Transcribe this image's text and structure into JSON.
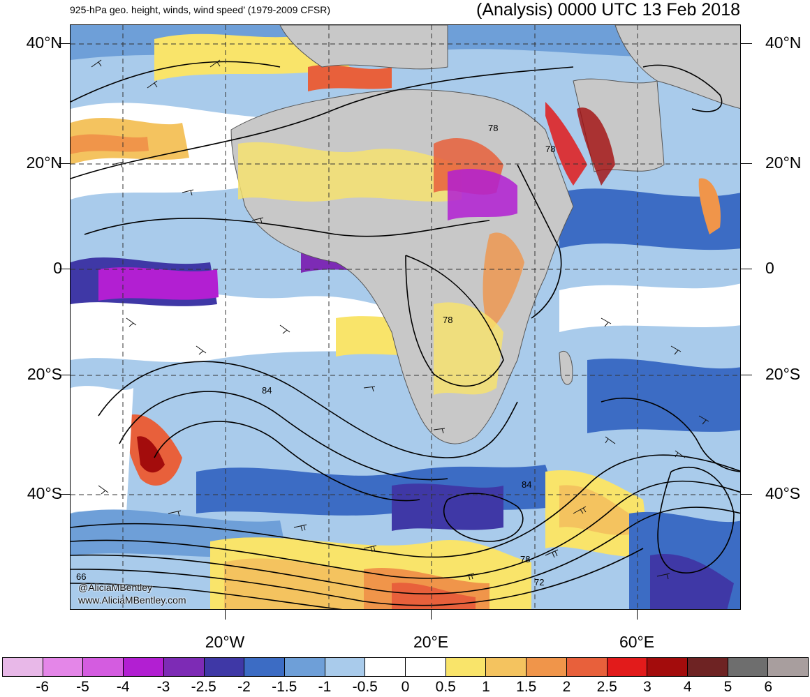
{
  "title": {
    "left": "925-hPa geo. height, winds, wind speed’ (1979-2009 CFSR)",
    "right": "(Analysis) 0000 UTC 13 Feb 2018"
  },
  "latitude_labels": [
    "40°N",
    "20°N",
    "0",
    "20°S",
    "40°S"
  ],
  "longitude_labels": [
    "20°W",
    "20°E",
    "60°E"
  ],
  "contour_labels": [
    "78",
    "78",
    "78",
    "84",
    "84",
    "78",
    "72",
    "66"
  ],
  "credit": {
    "handle": "@AliciaMBentley",
    "site": "www.AliciaMBentley.com"
  },
  "colorbar": {
    "labels": [
      "-6",
      "-5",
      "-4",
      "-3",
      "-2.5",
      "-2",
      "-1.5",
      "-1",
      "-0.5",
      "0",
      "0.5",
      "1",
      "1.5",
      "2",
      "2.5",
      "3",
      "4",
      "5",
      "6"
    ],
    "colors": [
      "#e8b8e8",
      "#e486e8",
      "#d45ce0",
      "#b21fd2",
      "#7d2bb5",
      "#3f38a6",
      "#3c6cc4",
      "#6e9fd8",
      "#a9cbeb",
      "#ffffff",
      "#ffffff",
      "#f9e46a",
      "#f4c35f",
      "#f0954a",
      "#e8603b",
      "#e21b1b",
      "#a30c0c",
      "#6e2323",
      "#6e6e6e",
      "#a89e9e"
    ]
  },
  "colors": {
    "land": "#c8c8c8",
    "contour": "#000000",
    "grid": "#333333"
  }
}
